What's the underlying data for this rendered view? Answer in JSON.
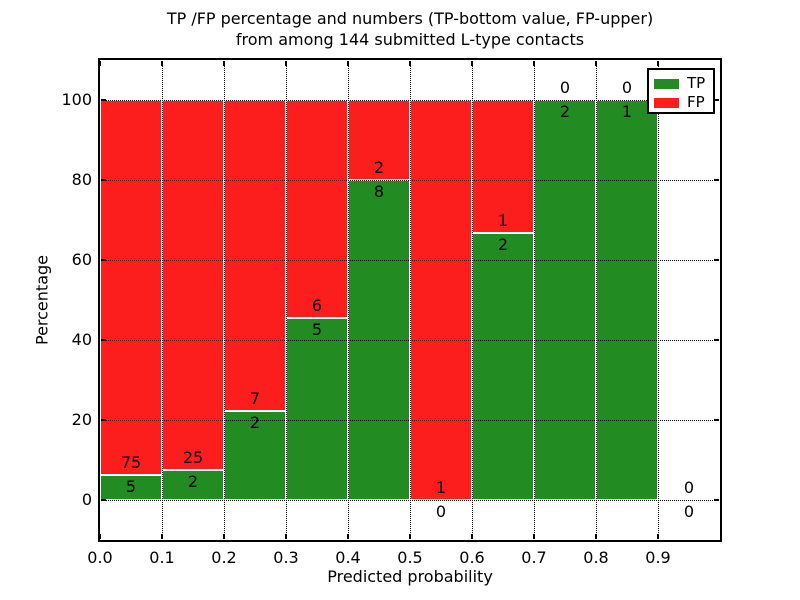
{
  "chart_data": {
    "type": "bar",
    "stacked": true,
    "title_line1": "TP /FP percentage and numbers (TP-bottom value, FP-upper)",
    "title_line2": "from among 144 submitted L-type contacts",
    "xlabel": "Predicted probability",
    "ylabel": "Percentage",
    "xlim": [
      0.0,
      1.0
    ],
    "ylim": [
      -10,
      110
    ],
    "grid": "dotted",
    "x_tick_values": [
      0.0,
      0.1,
      0.2,
      0.3,
      0.4,
      0.5,
      0.6,
      0.7,
      0.8,
      0.9
    ],
    "x_tick_labels": [
      "0.0",
      "0.1",
      "0.2",
      "0.3",
      "0.4",
      "0.5",
      "0.6",
      "0.7",
      "0.8",
      "0.9"
    ],
    "y_tick_values": [
      0,
      20,
      40,
      60,
      80,
      100
    ],
    "y_tick_labels": [
      "0",
      "20",
      "40",
      "60",
      "80",
      "100"
    ],
    "legend": {
      "position": "upper right",
      "entries": [
        {
          "label": "TP",
          "color": "#228b22"
        },
        {
          "label": "FP",
          "color": "#fc1d1d"
        }
      ]
    },
    "bins": [
      {
        "x_start": 0.0,
        "x_end": 0.1,
        "tp_count": 5,
        "fp_count": 75,
        "tp_pct": 6.25
      },
      {
        "x_start": 0.1,
        "x_end": 0.2,
        "tp_count": 2,
        "fp_count": 25,
        "tp_pct": 7.41
      },
      {
        "x_start": 0.2,
        "x_end": 0.3,
        "tp_count": 2,
        "fp_count": 7,
        "tp_pct": 22.22
      },
      {
        "x_start": 0.3,
        "x_end": 0.4,
        "tp_count": 5,
        "fp_count": 6,
        "tp_pct": 45.45
      },
      {
        "x_start": 0.4,
        "x_end": 0.5,
        "tp_count": 8,
        "fp_count": 2,
        "tp_pct": 80.0
      },
      {
        "x_start": 0.5,
        "x_end": 0.6,
        "tp_count": 0,
        "fp_count": 1,
        "tp_pct": 0.0
      },
      {
        "x_start": 0.6,
        "x_end": 0.7,
        "tp_count": 2,
        "fp_count": 1,
        "tp_pct": 66.67
      },
      {
        "x_start": 0.7,
        "x_end": 0.8,
        "tp_count": 2,
        "fp_count": 0,
        "tp_pct": 100.0
      },
      {
        "x_start": 0.8,
        "x_end": 0.9,
        "tp_count": 1,
        "fp_count": 0,
        "tp_pct": 100.0
      },
      {
        "x_start": 0.9,
        "x_end": 1.0,
        "tp_count": 0,
        "fp_count": 0,
        "tp_pct": null
      }
    ]
  },
  "colors": {
    "background": "#ffffff",
    "tp_green": "#228b22",
    "fp_red": "#fc1d1d",
    "bar_edge": "#ffffff",
    "grid": "#000000",
    "text": "#000000"
  }
}
